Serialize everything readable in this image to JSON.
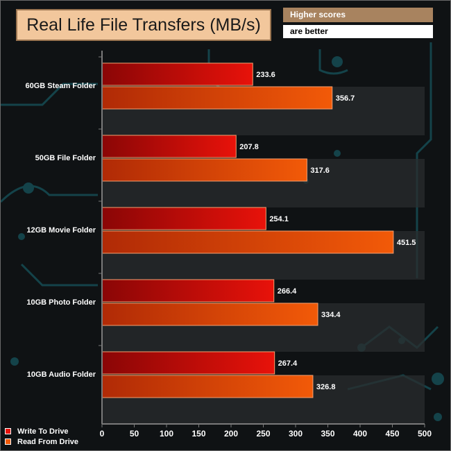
{
  "header": {
    "note_line1": "Higher scores",
    "note_line2": "are better"
  },
  "colors": {
    "write": "#e8120a",
    "read": "#f25a08",
    "band": "#2a2c2e"
  },
  "chart_data": {
    "type": "bar",
    "orientation": "horizontal",
    "title": "Real Life File Transfers (MB/s)",
    "categories": [
      "60GB Steam Folder",
      "50GB File Folder",
      "12GB Movie Folder",
      "10GB Photo Folder",
      "10GB Audio Folder"
    ],
    "series": [
      {
        "name": "Write To  Drive",
        "values": [
          233.6,
          207.8,
          254.1,
          266.4,
          267.4
        ]
      },
      {
        "name": "Read From  Drive",
        "values": [
          356.7,
          317.6,
          451.5,
          334.4,
          326.8
        ]
      }
    ],
    "xlim": [
      0,
      500
    ],
    "xticks": [
      0,
      50,
      100,
      150,
      200,
      250,
      300,
      350,
      400,
      450,
      500
    ],
    "legend_position": "bottom-left"
  }
}
